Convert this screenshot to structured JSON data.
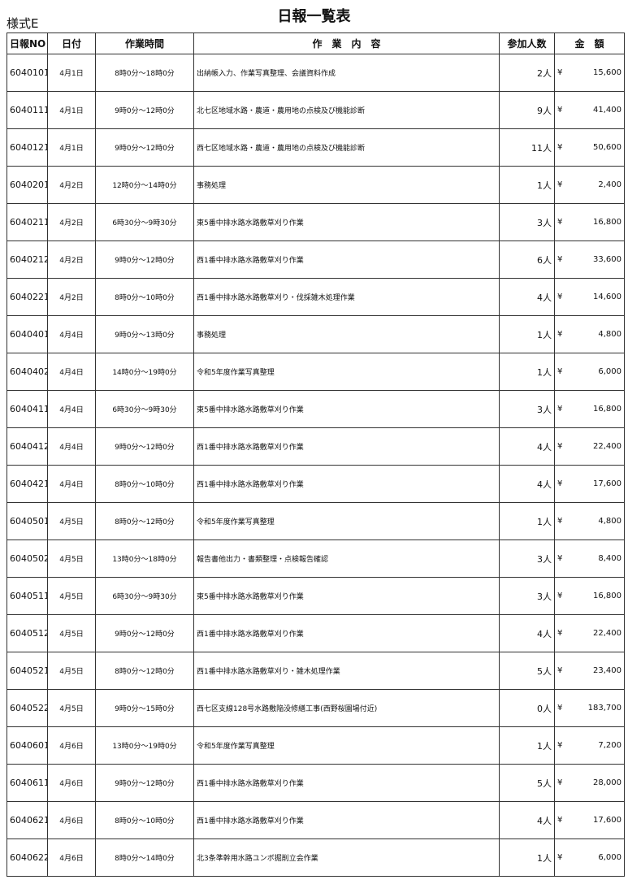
{
  "header": {
    "form": "様式E",
    "title": "日報一覧表"
  },
  "table": {
    "columns": [
      "日報NO",
      "日付",
      "作業時間",
      "作　業　内　容",
      "参加人数",
      "金　額"
    ],
    "rows": [
      [
        "6040101",
        "4月1日",
        "8時0分～18時0分",
        "出納帳入力、作業写真整理、会議資料作成",
        "2人",
        "¥",
        "15,600"
      ],
      [
        "6040111",
        "4月1日",
        "9時0分～12時0分",
        "北七区地域水路・農道・農用地の点検及び機能診断",
        "9人",
        "¥",
        "41,400"
      ],
      [
        "6040121",
        "4月1日",
        "9時0分～12時0分",
        "西七区地域水路・農道・農用地の点検及び機能診断",
        "11人",
        "¥",
        "50,600"
      ],
      [
        "6040201",
        "4月2日",
        "12時0分～14時0分",
        "事務処理",
        "1人",
        "¥",
        "2,400"
      ],
      [
        "6040211",
        "4月2日",
        "6時30分～9時30分",
        "東5番中排水路水路敷草刈り作業",
        "3人",
        "¥",
        "16,800"
      ],
      [
        "6040212",
        "4月2日",
        "9時0分～12時0分",
        "西1番中排水路水路敷草刈り作業",
        "6人",
        "¥",
        "33,600"
      ],
      [
        "6040221",
        "4月2日",
        "8時0分～10時0分",
        "西1番中排水路水路敷草刈り・伐採雑木処理作業",
        "4人",
        "¥",
        "14,600"
      ],
      [
        "6040401",
        "4月4日",
        "9時0分～13時0分",
        "事務処理",
        "1人",
        "¥",
        "4,800"
      ],
      [
        "6040402",
        "4月4日",
        "14時0分～19時0分",
        "令和5年度作業写真整理",
        "1人",
        "¥",
        "6,000"
      ],
      [
        "6040411",
        "4月4日",
        "6時30分～9時30分",
        "東5番中排水路水路敷草刈り作業",
        "3人",
        "¥",
        "16,800"
      ],
      [
        "6040412",
        "4月4日",
        "9時0分～12時0分",
        "西1番中排水路水路敷草刈り作業",
        "4人",
        "¥",
        "22,400"
      ],
      [
        "6040421",
        "4月4日",
        "8時0分～10時0分",
        "西1番中排水路水路敷草刈り作業",
        "4人",
        "¥",
        "17,600"
      ],
      [
        "6040501",
        "4月5日",
        "8時0分～12時0分",
        "令和5年度作業写真整理",
        "1人",
        "¥",
        "4,800"
      ],
      [
        "6040502",
        "4月5日",
        "13時0分～18時0分",
        "報告書他出力・書類整理・点検報告確認",
        "3人",
        "¥",
        "8,400"
      ],
      [
        "6040511",
        "4月5日",
        "6時30分～9時30分",
        "東5番中排水路水路敷草刈り作業",
        "3人",
        "¥",
        "16,800"
      ],
      [
        "6040512",
        "4月5日",
        "9時0分～12時0分",
        "西1番中排水路水路敷草刈り作業",
        "4人",
        "¥",
        "22,400"
      ],
      [
        "6040521",
        "4月5日",
        "8時0分～12時0分",
        "西1番中排水路水路敷草刈り・雑木処理作業",
        "5人",
        "¥",
        "23,400"
      ],
      [
        "6040522",
        "4月5日",
        "9時0分～15時0分",
        "西七区支線128号水路敷陥没修繕工事(西野桜園場付近)",
        "0人",
        "¥",
        "183,700"
      ],
      [
        "6040601",
        "4月6日",
        "13時0分～19時0分",
        "令和5年度作業写真整理",
        "1人",
        "¥",
        "7,200"
      ],
      [
        "6040611",
        "4月6日",
        "9時0分～12時0分",
        "西1番中排水路水路敷草刈り作業",
        "5人",
        "¥",
        "28,000"
      ],
      [
        "6040621",
        "4月6日",
        "8時0分～10時0分",
        "西1番中排水路水路敷草刈り作業",
        "4人",
        "¥",
        "17,600"
      ],
      [
        "6040622",
        "4月6日",
        "8時0分～14時0分",
        "北3条準幹用水路ユンボ掘削立会作業",
        "1人",
        "¥",
        "6,000"
      ]
    ]
  }
}
